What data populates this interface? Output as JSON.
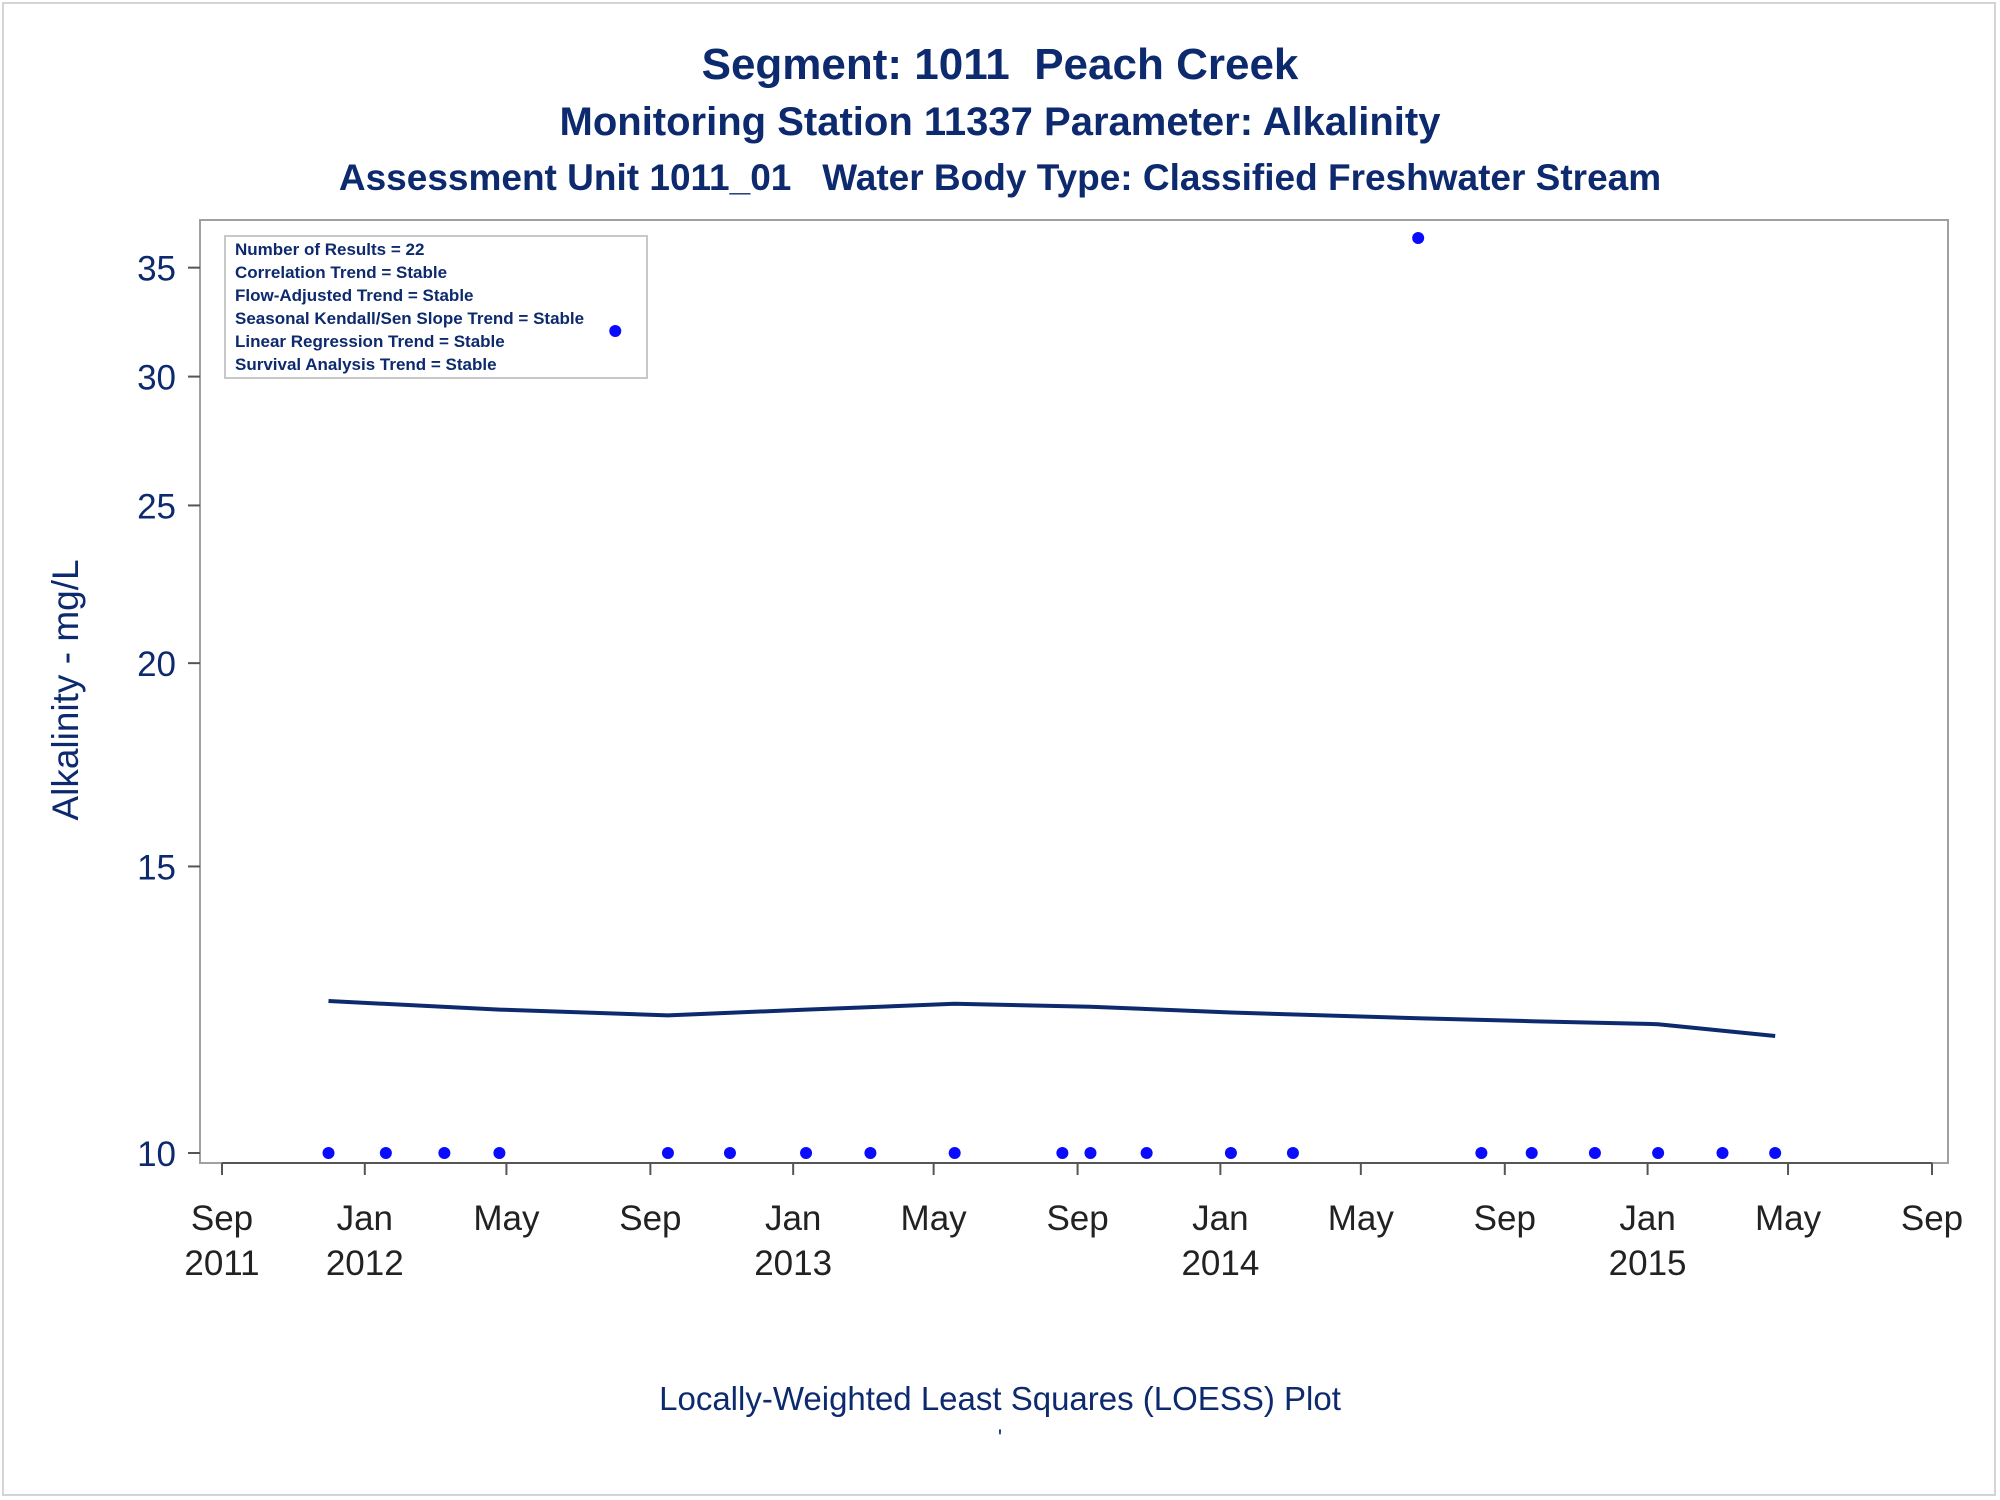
{
  "chart_data": {
    "type": "scatter",
    "title": "Segment: 1011  Peach Creek",
    "subtitle": "Monitoring Station 11337 Parameter: Alkalinity",
    "subtitle2": "Assessment Unit 1011_01   Water Body Type: Classified Freshwater Stream",
    "ylabel": "Alkalinity - mg/L",
    "footnote": "Locally-Weighted Least Squares (LOESS) Plot",
    "footnote_mark": "'",
    "y_scale": "log",
    "ylim": [
      9.85,
      37
    ],
    "y_ticks": [
      10,
      15,
      20,
      25,
      30,
      35
    ],
    "xlim": [
      "2011-09-01",
      "2015-09-01"
    ],
    "x_ticks": [
      {
        "date": "2011-09-01",
        "label": "Sep",
        "year": "2011"
      },
      {
        "date": "2012-01-01",
        "label": "Jan",
        "year": "2012"
      },
      {
        "date": "2012-05-01",
        "label": "May",
        "year": ""
      },
      {
        "date": "2012-09-01",
        "label": "Sep",
        "year": ""
      },
      {
        "date": "2013-01-01",
        "label": "Jan",
        "year": "2013"
      },
      {
        "date": "2013-05-01",
        "label": "May",
        "year": ""
      },
      {
        "date": "2013-09-01",
        "label": "Sep",
        "year": ""
      },
      {
        "date": "2014-01-01",
        "label": "Jan",
        "year": "2014"
      },
      {
        "date": "2014-05-01",
        "label": "May",
        "year": ""
      },
      {
        "date": "2014-09-01",
        "label": "Sep",
        "year": ""
      },
      {
        "date": "2015-01-01",
        "label": "Jan",
        "year": "2015"
      },
      {
        "date": "2015-05-01",
        "label": "May",
        "year": ""
      },
      {
        "date": "2015-09-01",
        "label": "Sep",
        "year": ""
      }
    ],
    "grid": false,
    "legend_position": "top-left",
    "legend_lines": [
      "Number of Results = 22",
      "Correlation Trend = Stable",
      "Flow-Adjusted Trend = Stable",
      "Seasonal Kendall/Sen Slope Trend = Stable",
      "Linear Regression Trend = Stable",
      "Survival Analysis Trend = Stable"
    ],
    "points": [
      {
        "x": "2011-12-01",
        "y": 10
      },
      {
        "x": "2012-01-19",
        "y": 10
      },
      {
        "x": "2012-03-09",
        "y": 10
      },
      {
        "x": "2012-04-25",
        "y": 10
      },
      {
        "x": "2012-08-02",
        "y": 32
      },
      {
        "x": "2012-09-16",
        "y": 10
      },
      {
        "x": "2012-11-08",
        "y": 10
      },
      {
        "x": "2013-01-12",
        "y": 10
      },
      {
        "x": "2013-03-08",
        "y": 10
      },
      {
        "x": "2013-05-19",
        "y": 10
      },
      {
        "x": "2013-08-19",
        "y": 10
      },
      {
        "x": "2013-09-12",
        "y": 10
      },
      {
        "x": "2013-10-30",
        "y": 10
      },
      {
        "x": "2014-01-10",
        "y": 10
      },
      {
        "x": "2014-03-04",
        "y": 10
      },
      {
        "x": "2014-06-19",
        "y": 36.5
      },
      {
        "x": "2014-08-12",
        "y": 10
      },
      {
        "x": "2014-09-24",
        "y": 10
      },
      {
        "x": "2014-11-17",
        "y": 10
      },
      {
        "x": "2015-01-10",
        "y": 10
      },
      {
        "x": "2015-03-06",
        "y": 10
      },
      {
        "x": "2015-04-20",
        "y": 10
      }
    ],
    "loess": [
      {
        "x": "2011-12-01",
        "y": 12.4
      },
      {
        "x": "2012-04-25",
        "y": 12.25
      },
      {
        "x": "2012-09-16",
        "y": 12.15
      },
      {
        "x": "2013-01-12",
        "y": 12.25
      },
      {
        "x": "2013-05-19",
        "y": 12.35
      },
      {
        "x": "2013-09-12",
        "y": 12.3
      },
      {
        "x": "2014-01-10",
        "y": 12.2
      },
      {
        "x": "2014-06-19",
        "y": 12.1
      },
      {
        "x": "2014-09-24",
        "y": 12.05
      },
      {
        "x": "2015-01-10",
        "y": 12.0
      },
      {
        "x": "2015-04-20",
        "y": 11.8
      }
    ],
    "colors": {
      "text": "#0d2a6e",
      "points": "#0a0aff",
      "loess": "#0d2a6e",
      "frame": "#a0a0a0",
      "axis": "#555555"
    }
  }
}
